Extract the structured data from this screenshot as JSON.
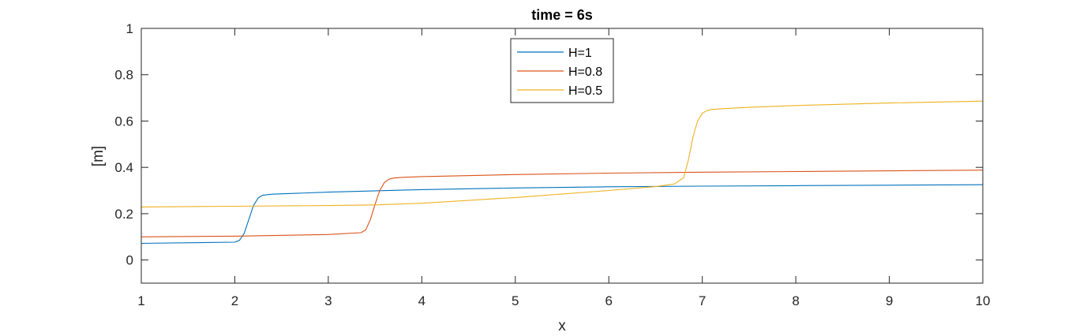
{
  "chart_data": {
    "type": "line",
    "title": "time = 6s",
    "xlabel": "x",
    "ylabel": "[m]",
    "xlim": [
      1,
      10
    ],
    "ylim": [
      -0.1,
      1
    ],
    "xticks": [
      "1",
      "2",
      "3",
      "4",
      "5",
      "6",
      "7",
      "8",
      "9",
      "10"
    ],
    "yticks": [
      "0",
      "0.2",
      "0.4",
      "0.6",
      "0.8",
      "1"
    ],
    "grid": false,
    "legend_position": "top-center",
    "series": [
      {
        "name": "H=1",
        "color": "#0072BD",
        "x": [
          1.0,
          2.0,
          2.05,
          2.1,
          2.15,
          2.2,
          2.25,
          2.3,
          2.4,
          3.0,
          4.0,
          5.0,
          6.0,
          7.0,
          8.0,
          9.0,
          10.0
        ],
        "y": [
          0.072,
          0.077,
          0.085,
          0.115,
          0.175,
          0.235,
          0.268,
          0.28,
          0.284,
          0.293,
          0.304,
          0.311,
          0.316,
          0.319,
          0.321,
          0.323,
          0.325
        ]
      },
      {
        "name": "H=0.8",
        "color": "#D95319",
        "x": [
          1.0,
          2.0,
          3.0,
          3.35,
          3.4,
          3.45,
          3.5,
          3.55,
          3.6,
          3.65,
          3.7,
          3.8,
          4.0,
          5.0,
          6.0,
          7.0,
          8.0,
          9.0,
          10.0
        ],
        "y": [
          0.1,
          0.103,
          0.11,
          0.118,
          0.13,
          0.175,
          0.24,
          0.3,
          0.335,
          0.349,
          0.354,
          0.357,
          0.36,
          0.369,
          0.375,
          0.379,
          0.382,
          0.385,
          0.388
        ]
      },
      {
        "name": "H=0.5",
        "color": "#EDB120",
        "x": [
          1.0,
          2.0,
          3.0,
          3.5,
          4.0,
          5.0,
          6.0,
          6.5,
          6.7,
          6.8,
          6.85,
          6.9,
          6.95,
          7.0,
          7.05,
          7.1,
          7.2,
          7.5,
          8.0,
          9.0,
          10.0
        ],
        "y": [
          0.229,
          0.232,
          0.235,
          0.238,
          0.245,
          0.27,
          0.3,
          0.317,
          0.328,
          0.355,
          0.43,
          0.53,
          0.6,
          0.634,
          0.645,
          0.65,
          0.653,
          0.659,
          0.667,
          0.678,
          0.686
        ]
      }
    ]
  }
}
